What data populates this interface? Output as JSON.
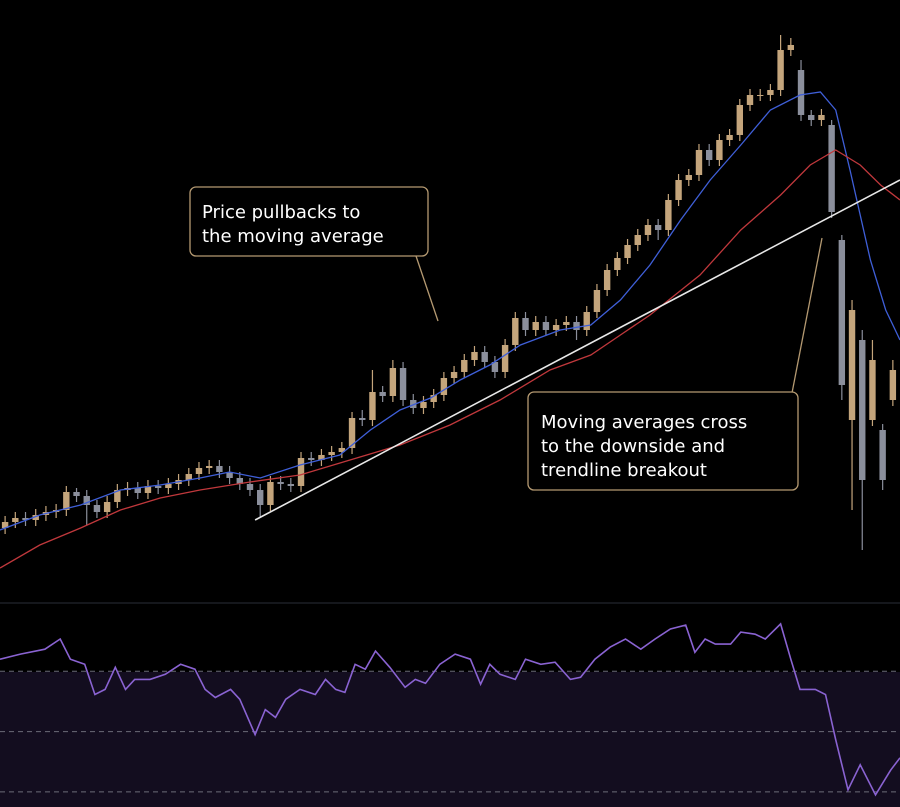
{
  "chart_data": {
    "type": "candlestick",
    "xlim": [
      -0.5,
      87.7
    ],
    "ylim": [
      0,
      600
    ],
    "up_color": "#c4a57c",
    "down_color": "#8b8f9c",
    "ohlc": [
      [
        72,
        84,
        66,
        78
      ],
      [
        78,
        88,
        72,
        82
      ],
      [
        82,
        88,
        74,
        80
      ],
      [
        80,
        91,
        74,
        85
      ],
      [
        85,
        94,
        79,
        88
      ],
      [
        88,
        96,
        82,
        90
      ],
      [
        90,
        114,
        84,
        108
      ],
      [
        108,
        112,
        98,
        104
      ],
      [
        104,
        110,
        75,
        95
      ],
      [
        95,
        100,
        82,
        88
      ],
      [
        88,
        104,
        82,
        98
      ],
      [
        98,
        116,
        92,
        110
      ],
      [
        110,
        118,
        104,
        112
      ],
      [
        112,
        118,
        101,
        107
      ],
      [
        107,
        120,
        101,
        114
      ],
      [
        114,
        120,
        106,
        112
      ],
      [
        112,
        122,
        106,
        116
      ],
      [
        116,
        126,
        110,
        120
      ],
      [
        120,
        132,
        114,
        126
      ],
      [
        126,
        138,
        120,
        132
      ],
      [
        132,
        140,
        126,
        134
      ],
      [
        134,
        140,
        122,
        128
      ],
      [
        128,
        134,
        116,
        122
      ],
      [
        122,
        128,
        110,
        116
      ],
      [
        116,
        122,
        104,
        110
      ],
      [
        110,
        116,
        82,
        95
      ],
      [
        95,
        124,
        89,
        118
      ],
      [
        118,
        124,
        110,
        116
      ],
      [
        116,
        122,
        108,
        114
      ],
      [
        114,
        148,
        108,
        142
      ],
      [
        142,
        148,
        134,
        140
      ],
      [
        140,
        151,
        134,
        145
      ],
      [
        145,
        154,
        139,
        148
      ],
      [
        148,
        158,
        142,
        152
      ],
      [
        152,
        188,
        146,
        182
      ],
      [
        182,
        190,
        174,
        180
      ],
      [
        180,
        230,
        174,
        208
      ],
      [
        208,
        214,
        198,
        204
      ],
      [
        204,
        240,
        198,
        232
      ],
      [
        232,
        238,
        194,
        200
      ],
      [
        200,
        206,
        186,
        192
      ],
      [
        192,
        204,
        186,
        198
      ],
      [
        198,
        211,
        192,
        205
      ],
      [
        205,
        228,
        199,
        222
      ],
      [
        222,
        234,
        216,
        228
      ],
      [
        228,
        246,
        222,
        240
      ],
      [
        240,
        254,
        234,
        248
      ],
      [
        248,
        254,
        232,
        238
      ],
      [
        238,
        244,
        222,
        228
      ],
      [
        228,
        261,
        222,
        255
      ],
      [
        255,
        288,
        249,
        282
      ],
      [
        282,
        288,
        264,
        270
      ],
      [
        270,
        284,
        264,
        278
      ],
      [
        278,
        284,
        264,
        270
      ],
      [
        270,
        281,
        264,
        275
      ],
      [
        275,
        284,
        269,
        278
      ],
      [
        278,
        284,
        260,
        270
      ],
      [
        270,
        294,
        264,
        288
      ],
      [
        288,
        316,
        282,
        310
      ],
      [
        310,
        336,
        304,
        330
      ],
      [
        330,
        348,
        324,
        342
      ],
      [
        342,
        361,
        336,
        355
      ],
      [
        355,
        371,
        349,
        365
      ],
      [
        365,
        381,
        359,
        375
      ],
      [
        375,
        381,
        360,
        370
      ],
      [
        370,
        406,
        364,
        400
      ],
      [
        400,
        426,
        394,
        420
      ],
      [
        420,
        431,
        414,
        425
      ],
      [
        425,
        456,
        419,
        450
      ],
      [
        450,
        456,
        434,
        440
      ],
      [
        440,
        466,
        434,
        460
      ],
      [
        460,
        471,
        454,
        465
      ],
      [
        465,
        501,
        459,
        495
      ],
      [
        495,
        511,
        489,
        505
      ],
      [
        505,
        511,
        499,
        505
      ],
      [
        505,
        516,
        499,
        510
      ],
      [
        510,
        565,
        504,
        550
      ],
      [
        550,
        562,
        544,
        555
      ],
      [
        530,
        540,
        479,
        485
      ],
      [
        485,
        490,
        474,
        480
      ],
      [
        480,
        491,
        474,
        485
      ],
      [
        475,
        480,
        382,
        388
      ],
      [
        360,
        365,
        200,
        215
      ],
      [
        180,
        300,
        90,
        290
      ],
      [
        260,
        270,
        50,
        120
      ],
      [
        180,
        260,
        174,
        240
      ],
      [
        170,
        176,
        110,
        120
      ],
      [
        200,
        240,
        194,
        230
      ]
    ],
    "lines": [
      {
        "color": "#3f5fd8",
        "x": [
          -0.5,
          3.4,
          7.4,
          11.3,
          15.2,
          19.1,
          22,
          25,
          28.9,
          32.8,
          35.8,
          38.7,
          41.7,
          44.6,
          47.5,
          50.5,
          54.4,
          57.4,
          60.3,
          63.2,
          66.2,
          69.1,
          72.1,
          75,
          77.9,
          79.9,
          81.4,
          82.8,
          84.8,
          86.3,
          87.7
        ],
        "values": [
          70,
          85,
          95,
          110,
          115,
          122,
          128,
          122,
          135,
          145,
          170,
          190,
          202,
          220,
          235,
          255,
          270,
          275,
          300,
          335,
          380,
          420,
          455,
          490,
          505,
          508,
          490,
          430,
          340,
          290,
          260
        ]
      },
      {
        "color": "#c0383c",
        "x": [
          -0.5,
          3.4,
          7.4,
          11.3,
          15.2,
          19.1,
          24,
          28.9,
          33.8,
          38.7,
          43.6,
          48.5,
          53.4,
          57.4,
          60.3,
          63.2,
          68.1,
          72.1,
          76,
          78.9,
          81.4,
          83.8,
          85.8,
          87.7
        ],
        "values": [
          32,
          55,
          72,
          90,
          102,
          110,
          118,
          125,
          140,
          155,
          175,
          200,
          230,
          245,
          265,
          285,
          325,
          370,
          405,
          435,
          450,
          435,
          415,
          400
        ]
      },
      {
        "color": "#e8e8e8",
        "x": [
          24.5,
          87.7
        ],
        "values": [
          80,
          420
        ]
      }
    ],
    "rsi": {
      "color": "#8a63d2",
      "ylim": [
        25,
        92.3
      ],
      "levels": [
        70,
        50,
        30
      ],
      "x": [
        -0.5,
        1.5,
        3.9,
        5.4,
        6.4,
        7.8,
        8.8,
        9.8,
        10.8,
        11.8,
        12.7,
        14.2,
        15.7,
        17.2,
        18.6,
        19.6,
        20.6,
        22.1,
        23,
        24.5,
        25.5,
        26.5,
        27.5,
        28.9,
        30.4,
        31.4,
        32.4,
        33.3,
        34.3,
        35.3,
        36.3,
        37.7,
        39.2,
        40.2,
        41.2,
        42.6,
        44.1,
        45.6,
        46.6,
        47.5,
        48.5,
        50,
        51,
        52.5,
        53.9,
        55.4,
        56.4,
        57.8,
        59.3,
        60.8,
        62.3,
        63.7,
        65.2,
        66.7,
        67.6,
        68.6,
        69.6,
        71.1,
        72.1,
        73.5,
        74.5,
        76,
        77,
        77.9,
        79.4,
        80.4,
        81.4,
        82.6,
        83.8,
        85.3,
        86.8,
        87.7
      ],
      "values": [
        74,
        75.7,
        77.3,
        80.7,
        74,
        72.3,
        62.3,
        64,
        71.3,
        64,
        67.3,
        67.3,
        69,
        72.3,
        70.7,
        64,
        61.3,
        64,
        60.7,
        49,
        57.3,
        54.7,
        60.7,
        64,
        62.3,
        67.3,
        64,
        63,
        72.3,
        70.7,
        76.7,
        71.3,
        64.7,
        67.3,
        66,
        72.3,
        75.7,
        74,
        65.7,
        72.3,
        69,
        67.3,
        74,
        72.3,
        73,
        67.3,
        68,
        74,
        78,
        80.7,
        77.3,
        80.7,
        84,
        85.3,
        76.3,
        80.7,
        79,
        79,
        83,
        82.3,
        80.7,
        85.7,
        74,
        64,
        64,
        62.3,
        47.3,
        30.7,
        39,
        29,
        37.3,
        41.3
      ]
    },
    "annotations": [
      {
        "lines": [
          "Price pullbacks to",
          "the moving average"
        ]
      },
      {
        "lines": [
          "Moving averages cross",
          "to the downside and",
          "trendline breakout"
        ]
      }
    ]
  }
}
